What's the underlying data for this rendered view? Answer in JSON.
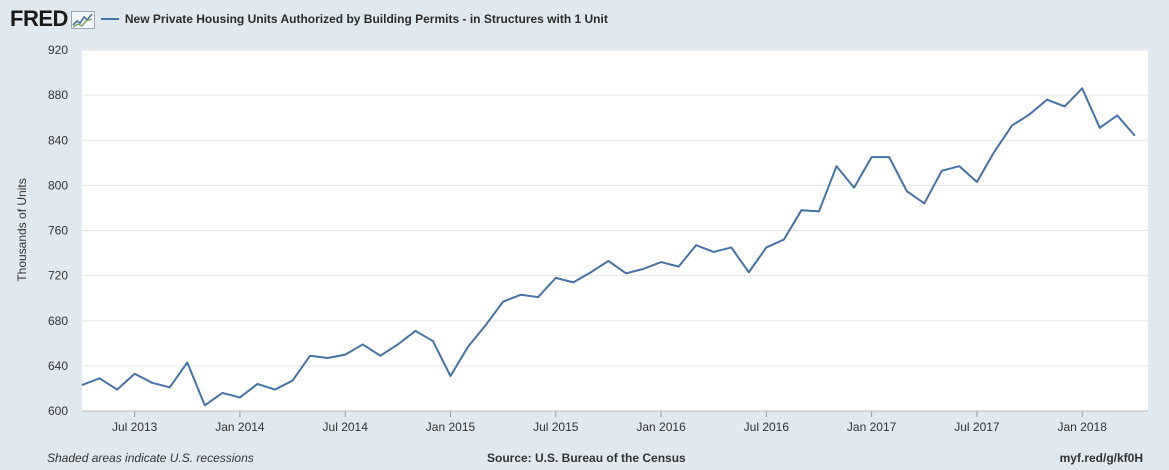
{
  "header": {
    "logo": "FRED",
    "series_title": "New Private Housing Units Authorized by Building Permits - in Structures with 1 Unit"
  },
  "footer": {
    "recession_note": "Shaded areas indicate U.S. recessions",
    "source": "Source: U.S. Bureau of the Census",
    "short_url": "myf.red/g/kf0H"
  },
  "colors": {
    "line": "#4572a7",
    "plot_background": "#ffffff",
    "page_background": "#e1e9f0",
    "grid": "#e6e6e6"
  },
  "chart_data": {
    "type": "line",
    "ylabel": "Thousands of Units",
    "ylim": [
      600,
      920
    ],
    "yticks": [
      600,
      640,
      680,
      720,
      760,
      800,
      840,
      880,
      920
    ],
    "xticks": [
      "Jul 2013",
      "Jan 2014",
      "Jul 2014",
      "Jan 2015",
      "Jul 2015",
      "Jan 2016",
      "Jul 2016",
      "Jan 2017",
      "Jul 2017",
      "Jan 2018"
    ],
    "grid": true,
    "legend": "top-left",
    "series": [
      {
        "name": "New Private Housing Units Authorized by Building Permits - in Structures with 1 Unit",
        "x": [
          "2013-04",
          "2013-05",
          "2013-06",
          "2013-07",
          "2013-08",
          "2013-09",
          "2013-10",
          "2013-11",
          "2013-12",
          "2014-01",
          "2014-02",
          "2014-03",
          "2014-04",
          "2014-05",
          "2014-06",
          "2014-07",
          "2014-08",
          "2014-09",
          "2014-10",
          "2014-11",
          "2014-12",
          "2015-01",
          "2015-02",
          "2015-03",
          "2015-04",
          "2015-05",
          "2015-06",
          "2015-07",
          "2015-08",
          "2015-09",
          "2015-10",
          "2015-11",
          "2015-12",
          "2016-01",
          "2016-02",
          "2016-03",
          "2016-04",
          "2016-05",
          "2016-06",
          "2016-07",
          "2016-08",
          "2016-09",
          "2016-10",
          "2016-11",
          "2016-12",
          "2017-01",
          "2017-02",
          "2017-03",
          "2017-04",
          "2017-05",
          "2017-06",
          "2017-07",
          "2017-08",
          "2017-09",
          "2017-10",
          "2017-11",
          "2017-12",
          "2018-01",
          "2018-02",
          "2018-03",
          "2018-04"
        ],
        "values": [
          623,
          629,
          619,
          633,
          625,
          621,
          643,
          605,
          616,
          612,
          624,
          619,
          627,
          649,
          647,
          650,
          659,
          649,
          659,
          671,
          662,
          631,
          657,
          676,
          697,
          703,
          701,
          718,
          714,
          723,
          733,
          722,
          726,
          732,
          728,
          747,
          741,
          745,
          723,
          745,
          752,
          778,
          777,
          817,
          798,
          825,
          825,
          795,
          784,
          813,
          817,
          803,
          830,
          853,
          863,
          876,
          870,
          886,
          851,
          862,
          844
        ]
      }
    ]
  }
}
